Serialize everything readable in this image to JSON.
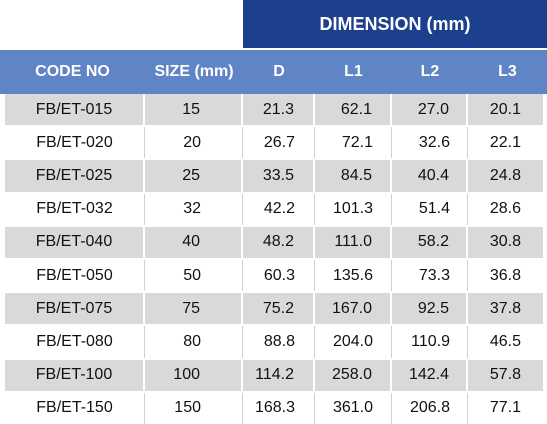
{
  "table": {
    "group_header": "DIMENSION (mm)",
    "columns": [
      "CODE NO",
      "SIZE (mm)",
      "D",
      "L1",
      "L2",
      "L3"
    ],
    "rows": [
      [
        "FB/ET-015",
        "15",
        "21.3",
        "62.1",
        "27.0",
        "20.1"
      ],
      [
        "FB/ET-020",
        "20",
        "26.7",
        "72.1",
        "32.6",
        "22.1"
      ],
      [
        "FB/ET-025",
        "25",
        "33.5",
        "84.5",
        "40.4",
        "24.8"
      ],
      [
        "FB/ET-032",
        "32",
        "42.2",
        "101.3",
        "51.4",
        "28.6"
      ],
      [
        "FB/ET-040",
        "40",
        "48.2",
        "111.0",
        "58.2",
        "30.8"
      ],
      [
        "FB/ET-050",
        "50",
        "60.3",
        "135.6",
        "73.3",
        "36.8"
      ],
      [
        "FB/ET-075",
        "75",
        "75.2",
        "167.0",
        "92.5",
        "37.8"
      ],
      [
        "FB/ET-080",
        "80",
        "88.8",
        "204.0",
        "110.9",
        "46.5"
      ],
      [
        "FB/ET-100",
        "100",
        "114.2",
        "258.0",
        "142.4",
        "57.8"
      ],
      [
        "FB/ET-150",
        "150",
        "168.3",
        "361.0",
        "206.8",
        "77.1"
      ]
    ]
  }
}
